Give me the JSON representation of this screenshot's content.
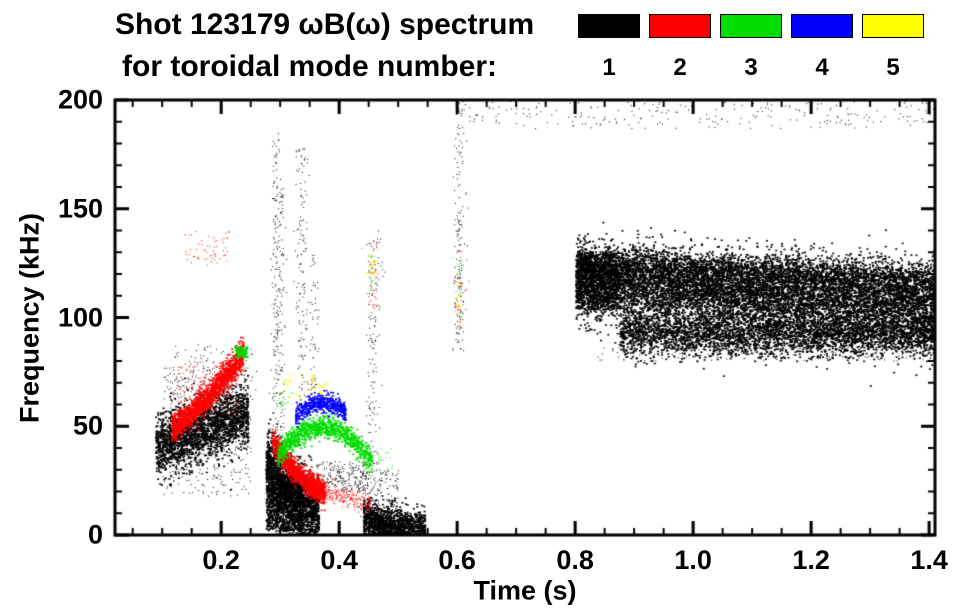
{
  "title": {
    "line1": "Shot 123179 ωB(ω) spectrum",
    "line2": "for toroidal mode number:"
  },
  "legend": {
    "modes": [
      {
        "label": "1",
        "color": "#000000"
      },
      {
        "label": "2",
        "color": "#ff0000"
      },
      {
        "label": "3",
        "color": "#00dd00"
      },
      {
        "label": "4",
        "color": "#0000ff"
      },
      {
        "label": "5",
        "color": "#ffff00"
      }
    ]
  },
  "chart_data": {
    "type": "scatter",
    "title": "Shot 123179 ωB(ω) spectrum for toroidal mode number: 1 2 3 4 5",
    "xlabel": "Time (s)",
    "ylabel": "Frequency (kHz)",
    "xlim": [
      0.02,
      1.41
    ],
    "ylim": [
      0,
      200
    ],
    "x_ticks": [
      "0.2",
      "0.4",
      "0.6",
      "0.8",
      "1.0",
      "1.2",
      "1.4"
    ],
    "x_tick_values": [
      0.2,
      0.4,
      0.6,
      0.8,
      1.0,
      1.2,
      1.4
    ],
    "x_minor_step": 0.05,
    "y_ticks": [
      "0",
      "50",
      "100",
      "150",
      "200"
    ],
    "y_tick_values": [
      0,
      50,
      100,
      150,
      200
    ],
    "y_minor_step": 10,
    "grid": false,
    "legend_position": "top-right",
    "series": [
      {
        "name": "n=1",
        "mode": 1,
        "color": "#000000",
        "clusters": [
          {
            "shape": "band",
            "t": [
              0.088,
              0.245
            ],
            "f": [
              41,
              56
            ],
            "spread": 7,
            "count": 2200,
            "size": 2,
            "columns": 70
          },
          {
            "shape": "box",
            "t": [
              0.1,
              0.25
            ],
            "f": [
              18,
              78
            ],
            "count": 420,
            "size": 1
          },
          {
            "shape": "box",
            "t": [
              0.12,
              0.26
            ],
            "f": [
              60,
              88
            ],
            "count": 130,
            "size": 1
          },
          {
            "shape": "band",
            "t": [
              0.275,
              0.365
            ],
            "f": [
              34,
              10
            ],
            "fm": 18,
            "spread": 8,
            "count": 1900,
            "size": 2,
            "columns": 55
          },
          {
            "shape": "box",
            "t": [
              0.275,
              0.335
            ],
            "f": [
              2,
              28
            ],
            "count": 900,
            "size": 2
          },
          {
            "shape": "box",
            "t": [
              0.36,
              0.45
            ],
            "f": [
              20,
              34
            ],
            "count": 240,
            "size": 1
          },
          {
            "shape": "band",
            "t": [
              0.44,
              0.545
            ],
            "f": [
              7,
              2
            ],
            "spread": 4.5,
            "count": 1400,
            "size": 2,
            "columns": 40
          },
          {
            "shape": "box",
            "t": [
              0.43,
              0.5
            ],
            "f": [
              8,
              30
            ],
            "count": 170,
            "size": 1
          },
          {
            "shape": "column",
            "tc": 0.292,
            "tw": 0.004,
            "f": [
              0,
              185
            ],
            "count": 240,
            "size": 1
          },
          {
            "shape": "column",
            "tc": 0.302,
            "tw": 0.003,
            "f": [
              20,
              160
            ],
            "count": 110,
            "size": 1
          },
          {
            "shape": "column",
            "tc": 0.336,
            "tw": 0.006,
            "f": [
              55,
              178
            ],
            "count": 150,
            "size": 1
          },
          {
            "shape": "column",
            "tc": 0.355,
            "tw": 0.004,
            "f": [
              60,
              130
            ],
            "count": 60,
            "size": 1
          },
          {
            "shape": "column",
            "tc": 0.457,
            "tw": 0.006,
            "f": [
              15,
              140
            ],
            "count": 140,
            "size": 1
          },
          {
            "shape": "column",
            "tc": 0.603,
            "tw": 0.005,
            "f": [
              85,
              200
            ],
            "count": 150,
            "size": 1
          },
          {
            "shape": "band",
            "t": [
              0.8,
              1.408
            ],
            "f": [
              117,
              106
            ],
            "spread": 8.5,
            "count": 9000,
            "size": 2,
            "columns": 260
          },
          {
            "shape": "band",
            "t": [
              0.875,
              1.408
            ],
            "f": [
              93,
              92
            ],
            "spread": 5,
            "count": 3600,
            "size": 2,
            "columns": 230
          },
          {
            "shape": "band",
            "t": [
              0.8,
              1.408
            ],
            "f": [
              125,
              118
            ],
            "spread": 4,
            "count": 2200,
            "size": 2,
            "columns": 240
          },
          {
            "shape": "box",
            "t": [
              0.8,
              0.87
            ],
            "f": [
              104,
              130
            ],
            "count": 700,
            "size": 2
          },
          {
            "shape": "box",
            "t": [
              0.83,
              1.408
            ],
            "f": [
              80,
              88
            ],
            "count": 150,
            "size": 1
          },
          {
            "shape": "box",
            "t": [
              0.62,
              1.408
            ],
            "f": [
              187,
              200
            ],
            "count": 240,
            "size": 1,
            "columns": 150
          }
        ]
      },
      {
        "name": "n=2",
        "mode": 2,
        "color": "#ff0000",
        "clusters": [
          {
            "shape": "band",
            "t": [
              0.115,
              0.237
            ],
            "f": [
              49,
              84
            ],
            "fm": 64,
            "spread": 3.2,
            "count": 1500,
            "size": 2,
            "columns": 60
          },
          {
            "shape": "box",
            "t": [
              0.12,
              0.23
            ],
            "f": [
              55,
              80
            ],
            "count": 140,
            "size": 1
          },
          {
            "shape": "box",
            "t": [
              0.135,
              0.215
            ],
            "f": [
              124,
              140
            ],
            "count": 60,
            "size": 1
          },
          {
            "shape": "band",
            "t": [
              0.285,
              0.375
            ],
            "f": [
              44,
              20
            ],
            "fm": 28,
            "spread": 2.8,
            "count": 1100,
            "size": 2,
            "columns": 50
          },
          {
            "shape": "band",
            "t": [
              0.375,
              0.455
            ],
            "f": [
              20,
              14
            ],
            "spread": 2.2,
            "count": 240,
            "size": 1
          },
          {
            "shape": "column",
            "tc": 0.457,
            "tw": 0.004,
            "f": [
              100,
              135
            ],
            "count": 35,
            "size": 1
          },
          {
            "shape": "column",
            "tc": 0.605,
            "tw": 0.004,
            "f": [
              95,
              135
            ],
            "count": 40,
            "size": 1
          }
        ]
      },
      {
        "name": "n=3",
        "mode": 3,
        "color": "#00dd00",
        "clusters": [
          {
            "shape": "band",
            "t": [
              0.295,
              0.455
            ],
            "f": [
              37,
              33
            ],
            "fm": 50,
            "spread": 2.6,
            "count": 1000,
            "size": 2,
            "columns": 60
          },
          {
            "shape": "box",
            "t": [
              0.222,
              0.243
            ],
            "f": [
              82,
              87
            ],
            "count": 90,
            "size": 2
          },
          {
            "shape": "box",
            "t": [
              0.29,
              0.32
            ],
            "f": [
              58,
              66
            ],
            "count": 25,
            "size": 1
          },
          {
            "shape": "box",
            "t": [
              0.46,
              0.49
            ],
            "f": [
              30,
              40
            ],
            "count": 18,
            "size": 1
          },
          {
            "shape": "column",
            "tc": 0.455,
            "tw": 0.004,
            "f": [
              110,
              132
            ],
            "count": 22,
            "size": 1
          },
          {
            "shape": "column",
            "tc": 0.602,
            "tw": 0.004,
            "f": [
              100,
              128
            ],
            "count": 28,
            "size": 1
          }
        ]
      },
      {
        "name": "n=4",
        "mode": 4,
        "color": "#0000ff",
        "clusters": [
          {
            "shape": "band",
            "t": [
              0.325,
              0.41
            ],
            "f": [
              55,
              57
            ],
            "fm": 61,
            "spread": 2.2,
            "count": 480,
            "size": 2,
            "columns": 40
          },
          {
            "shape": "column",
            "tc": 0.604,
            "tw": 0.003,
            "f": [
              110,
              125
            ],
            "count": 10,
            "size": 1
          },
          {
            "shape": "box",
            "t": [
              0.46,
              0.478
            ],
            "f": [
              115,
              128
            ],
            "count": 8,
            "size": 1
          }
        ]
      },
      {
        "name": "n=5",
        "mode": 5,
        "color": "#ffff00",
        "clusters": [
          {
            "shape": "box",
            "t": [
              0.3,
              0.38
            ],
            "f": [
              63,
              74
            ],
            "count": 30,
            "size": 2
          },
          {
            "shape": "column",
            "tc": 0.456,
            "tw": 0.004,
            "f": [
              118,
              130
            ],
            "count": 10,
            "size": 2
          },
          {
            "shape": "column",
            "tc": 0.601,
            "tw": 0.003,
            "f": [
              105,
              120
            ],
            "count": 8,
            "size": 2
          }
        ]
      }
    ]
  }
}
